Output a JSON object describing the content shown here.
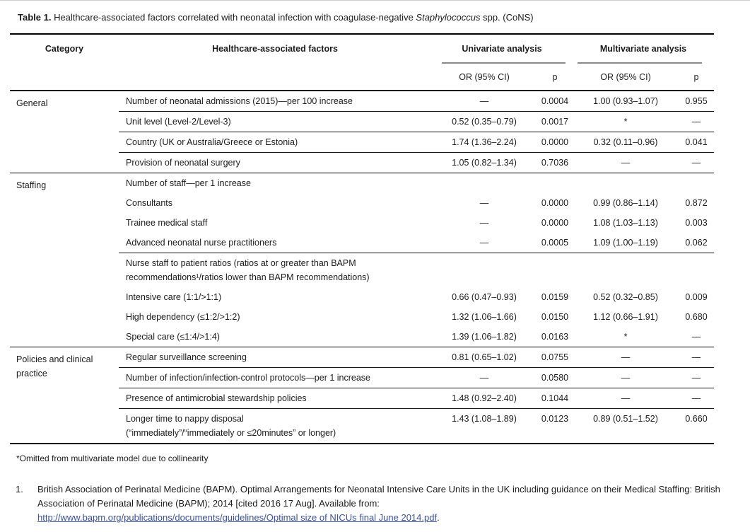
{
  "title": {
    "label": "Table 1.",
    "text": " Healthcare-associated factors correlated with neonatal infection with coagulase-negative ",
    "italic": "Staphylococcus",
    "suffix": " spp. (CoNS)"
  },
  "colors": {
    "link": "#3a51a3",
    "header_rule_gray": "#8a8a8a",
    "text": "#1c1c1c"
  },
  "table": {
    "headers": {
      "category": "Category",
      "factors": "Healthcare-associated factors",
      "univariate": "Univariate analysis",
      "multivariate": "Multivariate analysis",
      "or_ci_uni": "OR (95% CI)",
      "p_uni": "p",
      "or_ci_multi": "OR (95% CI)",
      "p_multi": "p"
    },
    "sections": [
      {
        "category": "General",
        "rows": [
          {
            "factor": "Number of neonatal admissions (2015)—per 100 increase",
            "uni_or": "—",
            "uni_p": "0.0004",
            "multi_or": "1.00 (0.93–1.07)",
            "multi_p": "0.955",
            "sep_after": true
          },
          {
            "factor": "Unit level (Level-2/Level-3)",
            "uni_or": "0.52 (0.35–0.79)",
            "uni_p": "0.0017",
            "multi_or": "*",
            "multi_p": "—",
            "sep_after": true
          },
          {
            "factor": "Country (UK or Australia/Greece or Estonia)",
            "uni_or": "1.74 (1.36–2.24)",
            "uni_p": "0.0000",
            "multi_or": "0.32 (0.11–0.96)",
            "multi_p": "0.041",
            "sep_after": true
          },
          {
            "factor": "Provision of neonatal surgery",
            "uni_or": "1.05 (0.82–1.34)",
            "uni_p": "0.7036",
            "multi_or": "—",
            "multi_p": "—"
          }
        ]
      },
      {
        "category": "Staffing",
        "rows": [
          {
            "factor": "Number of staff—per 1 increase",
            "uni_or": "",
            "uni_p": "",
            "multi_or": "",
            "multi_p": ""
          },
          {
            "factor": "Consultants",
            "uni_or": "—",
            "uni_p": "0.0000",
            "multi_or": "0.99 (0.86–1.14)",
            "multi_p": "0.872"
          },
          {
            "factor": "Trainee medical staff",
            "uni_or": "—",
            "uni_p": "0.0000",
            "multi_or": "1.08 (1.03–1.13)",
            "multi_p": "0.003"
          },
          {
            "factor": "Advanced neonatal nurse practitioners",
            "uni_or": "—",
            "uni_p": "0.0005",
            "multi_or": "1.09 (1.00–1.19)",
            "multi_p": "0.062",
            "sep_after": true
          },
          {
            "factor": "Nurse staff to patient ratios (ratios at or greater than BAPM",
            "factor_line2": "recommendations¹/ratios lower than BAPM recommendations)",
            "uni_or": "",
            "uni_p": "",
            "multi_or": "",
            "multi_p": ""
          },
          {
            "factor": "Intensive care (1:1/>1:1)",
            "uni_or": "0.66 (0.47–0.93)",
            "uni_p": "0.0159",
            "multi_or": "0.52 (0.32–0.85)",
            "multi_p": "0.009"
          },
          {
            "factor": "High dependency (≤1:2/>1:2)",
            "uni_or": "1.32 (1.06–1.66)",
            "uni_p": "0.0150",
            "multi_or": "1.12 (0.66–1.91)",
            "multi_p": "0.680"
          },
          {
            "factor": "Special care (≤1:4/>1:4)",
            "uni_or": "1.39 (1.06–1.82)",
            "uni_p": "0.0163",
            "multi_or": "*",
            "multi_p": "—"
          }
        ]
      },
      {
        "category": "Policies and clinical practice",
        "rows": [
          {
            "factor": "Regular surveillance screening",
            "uni_or": "0.81 (0.65–1.02)",
            "uni_p": "0.0755",
            "multi_or": "—",
            "multi_p": "—",
            "sep_after": true
          },
          {
            "factor": "Number of infection/infection-control protocols—per 1 increase",
            "uni_or": "—",
            "uni_p": "0.0580",
            "multi_or": "—",
            "multi_p": "—",
            "sep_after": true
          },
          {
            "factor": "Presence of antimicrobial stewardship policies",
            "uni_or": "1.48 (0.92–2.40)",
            "uni_p": "0.1044",
            "multi_or": "—",
            "multi_p": "—",
            "sep_after": true
          },
          {
            "factor": "Longer time to nappy disposal",
            "factor_line2": "(“immediately”/“immediately or ≤20minutes” or longer)",
            "uni_or": "1.43 (1.08–1.89)",
            "uni_p": "0.0123",
            "multi_or": "0.89 (0.51–1.52)",
            "multi_p": "0.660"
          }
        ]
      }
    ]
  },
  "footnote": "*Omitted from multivariate model due to collinearity",
  "reference": {
    "number": "1.",
    "text": "British Association of Perinatal Medicine (BAPM). Optimal Arrangements for Neonatal Intensive Care Units in the UK including guidance on their Medical Staffing: British Association of Perinatal Medicine (BAPM); 2014 [cited 2016 17 Aug]. Available from: ",
    "link": "http://www.bapm.org/publications/documents/guidelines/Optimal size of NICUs final June 2014.pdf",
    "suffix": "."
  }
}
